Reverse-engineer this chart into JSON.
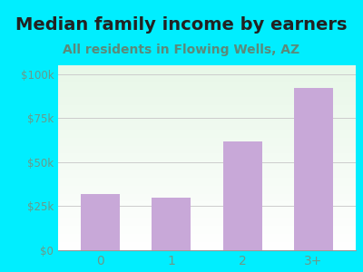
{
  "title": "Median family income by earners",
  "subtitle": "All residents in Flowing Wells, AZ",
  "categories": [
    "0",
    "1",
    "2",
    "3+"
  ],
  "values": [
    32000,
    30000,
    62000,
    92000
  ],
  "bar_color": "#c8a8d8",
  "background_outer": "#00eeff",
  "title_color": "#222222",
  "subtitle_color": "#5a8a7a",
  "tick_label_color": "#6a9a8a",
  "ytick_labels": [
    "$0",
    "$25k",
    "$50k",
    "$75k",
    "$100k"
  ],
  "ytick_values": [
    0,
    25000,
    50000,
    75000,
    100000
  ],
  "ylim": [
    0,
    105000
  ],
  "title_fontsize": 14,
  "subtitle_fontsize": 10
}
